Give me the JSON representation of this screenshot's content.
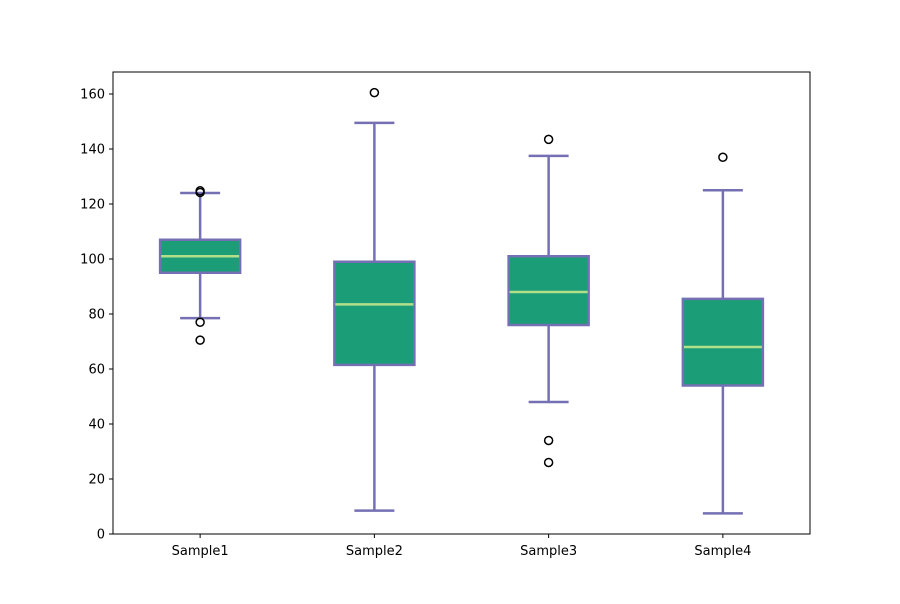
{
  "chart_data": {
    "type": "box",
    "title": "",
    "xlabel": "",
    "ylabel": "",
    "ylim": [
      0,
      168
    ],
    "yticks": [
      0,
      20,
      40,
      60,
      80,
      100,
      120,
      140,
      160
    ],
    "categories": [
      "Sample1",
      "Sample2",
      "Sample3",
      "Sample4"
    ],
    "boxes": [
      {
        "label": "Sample1",
        "whisker_low": 78.5,
        "q1": 95,
        "median": 101,
        "q3": 107,
        "whisker_high": 124,
        "outliers": [
          124.2,
          124.8,
          77,
          70.5
        ]
      },
      {
        "label": "Sample2",
        "whisker_low": 8.5,
        "q1": 61.5,
        "median": 83.5,
        "q3": 99,
        "whisker_high": 149.5,
        "outliers": [
          160.5
        ]
      },
      {
        "label": "Sample3",
        "whisker_low": 48,
        "q1": 76,
        "median": 88,
        "q3": 101,
        "whisker_high": 137.5,
        "outliers": [
          143.5,
          34,
          26
        ]
      },
      {
        "label": "Sample4",
        "whisker_low": 7.5,
        "q1": 54,
        "median": 68,
        "q3": 85.5,
        "whisker_high": 125,
        "outliers": [
          137
        ]
      }
    ],
    "colors": {
      "box_fill": "#1b9e77",
      "box_edge": "#7570b3",
      "whisker": "#7570b3",
      "median": "#b2df8a",
      "outlier_edge": "#000000",
      "axes": "#000000"
    },
    "grid": false,
    "legend": "none"
  }
}
